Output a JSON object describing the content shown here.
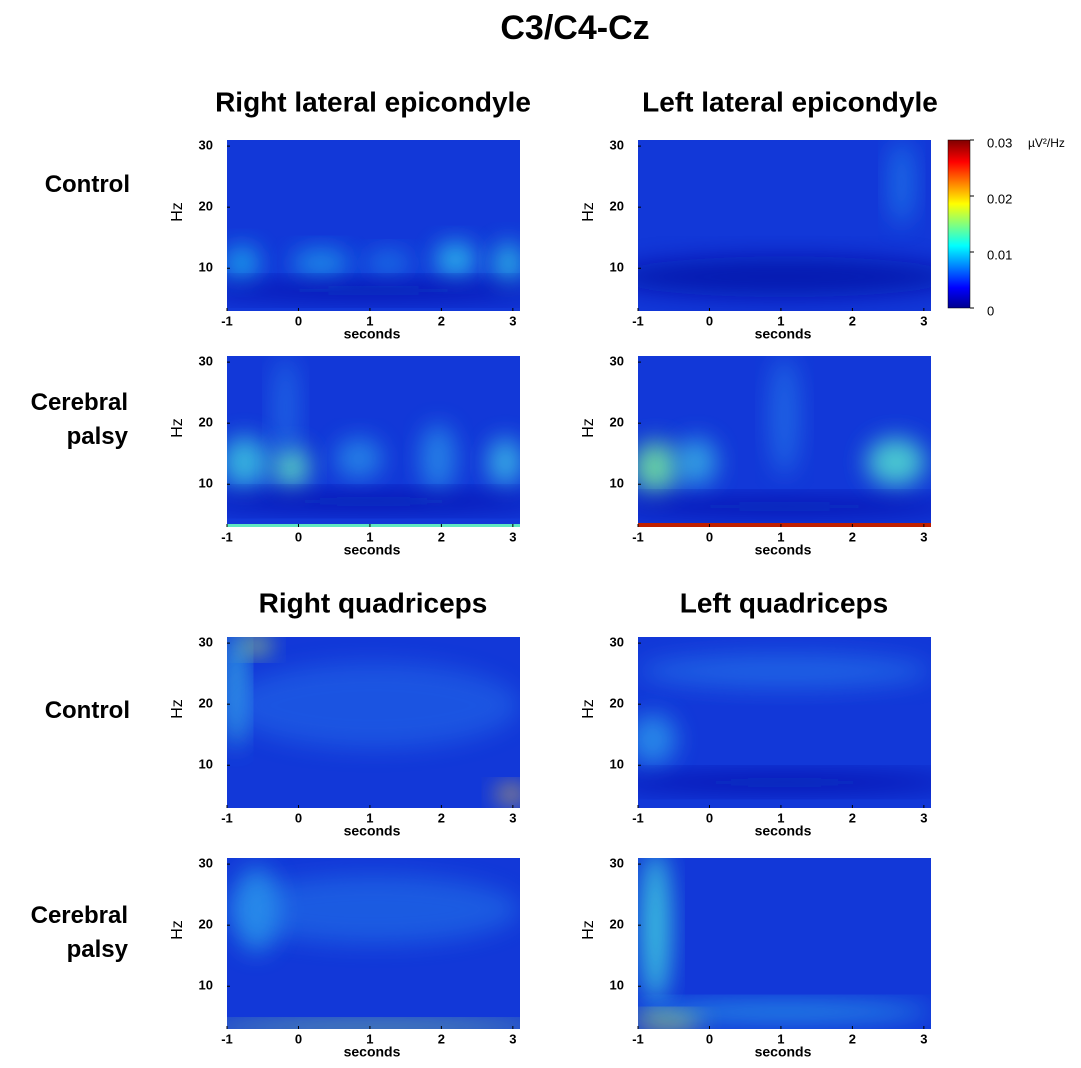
{
  "title": "C3/C4-Cz",
  "column_titles": [
    "Right lateral epicondyle",
    "Left lateral epicondyle",
    "Right quadriceps",
    "Left quadriceps"
  ],
  "row_labels": [
    "Control",
    "Cerebral palsy",
    "Control",
    "Cerebral palsy"
  ],
  "chart_data": [
    {
      "type": "heatmap",
      "xlabel": "seconds",
      "ylabel": "Hz",
      "xlim": [
        -1,
        3.1
      ],
      "ylim": [
        3,
        31
      ],
      "xticks": [
        -1,
        0,
        1,
        2,
        3
      ],
      "yticks": [
        10,
        20,
        30
      ]
    },
    {
      "type": "heatmap",
      "xlabel": "seconds",
      "ylabel": "Hz",
      "xlim": [
        -1,
        3.1
      ],
      "ylim": [
        3,
        31
      ],
      "xticks": [
        -1,
        0,
        1,
        2,
        3
      ],
      "yticks": [
        10,
        20,
        30
      ],
      "colorbar": {
        "lim": [
          0,
          0.03
        ],
        "ticks": [
          0,
          0.01,
          0.02,
          0.03
        ],
        "label": "µV²/Hz"
      }
    },
    {
      "type": "heatmap",
      "xlabel": "seconds",
      "ylabel": "Hz",
      "xlim": [
        -1,
        3.1
      ],
      "ylim": [
        3,
        31
      ],
      "xticks": [
        -1,
        0,
        1,
        2,
        3
      ],
      "yticks": [
        10,
        20,
        30
      ]
    },
    {
      "type": "heatmap",
      "xlabel": "seconds",
      "ylabel": "Hz",
      "xlim": [
        -1,
        3.1
      ],
      "ylim": [
        3,
        31
      ],
      "xticks": [
        -1,
        0,
        1,
        2,
        3
      ],
      "yticks": [
        10,
        20,
        30
      ]
    },
    {
      "type": "heatmap",
      "xlabel": "seconds",
      "ylabel": "Hz",
      "xlim": [
        -1,
        3.1
      ],
      "ylim": [
        3,
        31
      ],
      "xticks": [
        -1,
        0,
        1,
        2,
        3
      ],
      "yticks": [
        10,
        20,
        30
      ]
    },
    {
      "type": "heatmap",
      "xlabel": "seconds",
      "ylabel": "Hz",
      "xlim": [
        -1,
        3.1
      ],
      "ylim": [
        3,
        31
      ],
      "xticks": [
        -1,
        0,
        1,
        2,
        3
      ],
      "yticks": [
        10,
        20,
        30
      ]
    },
    {
      "type": "heatmap",
      "xlabel": "seconds",
      "ylabel": "Hz",
      "xlim": [
        -1,
        3.1
      ],
      "ylim": [
        3,
        31
      ],
      "xticks": [
        -1,
        0,
        1,
        2,
        3
      ],
      "yticks": [
        10,
        20,
        30
      ]
    },
    {
      "type": "heatmap",
      "xlabel": "seconds",
      "ylabel": "Hz",
      "xlim": [
        -1,
        3.1
      ],
      "ylim": [
        3,
        31
      ],
      "xticks": [
        -1,
        0,
        1,
        2,
        3
      ],
      "yticks": [
        10,
        20,
        30
      ]
    }
  ]
}
